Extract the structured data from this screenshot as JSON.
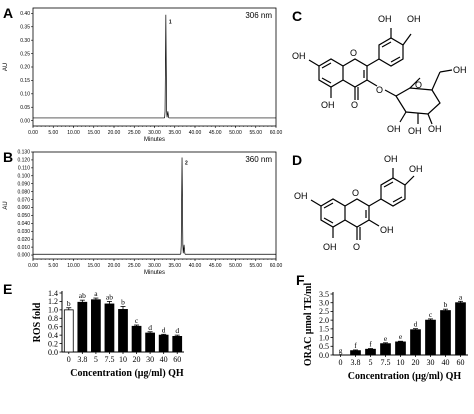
{
  "panel_letters": {
    "a": "A",
    "b": "B",
    "c": "C",
    "d": "D",
    "e": "E",
    "f": "F"
  },
  "chart_data": [
    {
      "id": "A",
      "type": "line",
      "ylabel": "AU",
      "xlabel": "Minutes",
      "annotation": "306 nm",
      "peak_label": "1",
      "x_ticks": [
        "0.00",
        "5.00",
        "10.00",
        "15.00",
        "20.00",
        "25.00",
        "30.00",
        "35.00",
        "40.00",
        "45.00",
        "50.00",
        "55.00",
        "60.00"
      ],
      "y_ticks": [
        "0.00",
        "0.05",
        "0.10",
        "0.15",
        "0.20",
        "0.25",
        "0.30",
        "0.35",
        "0.40"
      ],
      "xlim": [
        0,
        60
      ],
      "ylim": [
        -0.02,
        0.42
      ],
      "baseline": 0.01,
      "peak": {
        "x": 32.8,
        "y": 0.385,
        "width": 0.12
      },
      "minor_peaks": [
        {
          "x": 33.3,
          "y": 0.025
        }
      ]
    },
    {
      "id": "B",
      "type": "line",
      "ylabel": "AU",
      "xlabel": "Minutes",
      "annotation": "360 nm",
      "peak_label": "2",
      "x_ticks": [
        "0.00",
        "5.00",
        "10.00",
        "15.00",
        "20.00",
        "25.00",
        "30.00",
        "35.00",
        "40.00",
        "45.00",
        "50.00",
        "55.00",
        "60.00"
      ],
      "y_ticks": [
        "0.000",
        "0.010",
        "0.020",
        "0.030",
        "0.040",
        "0.050",
        "0.060",
        "0.070",
        "0.080",
        "0.090",
        "0.100",
        "0.110",
        "0.120",
        "0.130"
      ],
      "xlim": [
        0,
        60
      ],
      "ylim": [
        -0.005,
        0.13
      ],
      "baseline": 0.001,
      "peak": {
        "x": 36.8,
        "y": 0.122,
        "width": 0.13
      },
      "minor_peaks": [
        {
          "x": 37.3,
          "y": 0.012
        }
      ]
    },
    {
      "id": "E",
      "type": "bar",
      "ylabel": "ROS fold",
      "xlabel": "Concentration (μg/ml) QH",
      "categories": [
        "0",
        "3.8",
        "5",
        "7.5",
        "10",
        "20",
        "30",
        "40",
        "60"
      ],
      "values": [
        1.0,
        1.18,
        1.24,
        1.14,
        1.01,
        0.61,
        0.45,
        0.4,
        0.37
      ],
      "errors": [
        0.05,
        0.05,
        0.04,
        0.06,
        0.07,
        0.03,
        0.03,
        0.02,
        0.03
      ],
      "significance": [
        "b",
        "ab",
        "a",
        "ab",
        "b",
        "c",
        "d",
        "d",
        "d"
      ],
      "colors": [
        "#ffffff",
        "#000000",
        "#000000",
        "#000000",
        "#000000",
        "#000000",
        "#000000",
        "#000000",
        "#000000"
      ],
      "y_ticks": [
        "0.0",
        "0.2",
        "0.4",
        "0.6",
        "0.8",
        "1.0",
        "1.2",
        "1.4"
      ],
      "ylim": [
        0,
        1.4
      ]
    },
    {
      "id": "F",
      "type": "bar",
      "ylabel": "ORAC μmol TE/ml",
      "xlabel": "Concentration (μg/ml) QH",
      "categories": [
        "0",
        "3.8",
        "5",
        "7.5",
        "10",
        "20",
        "30",
        "40",
        "60"
      ],
      "values": [
        0.0,
        0.25,
        0.33,
        0.65,
        0.75,
        1.45,
        2.0,
        2.55,
        3.0
      ],
      "errors": [
        0.0,
        0.04,
        0.04,
        0.05,
        0.04,
        0.06,
        0.07,
        0.08,
        0.08
      ],
      "significance": [
        "g",
        "f",
        "f",
        "e",
        "e",
        "d",
        "c",
        "b",
        "a"
      ],
      "y_ticks": [
        "0.0",
        "0.5",
        "1.0",
        "1.5",
        "2.0",
        "2.5",
        "3.0",
        "3.5"
      ],
      "ylim": [
        0,
        3.5
      ]
    }
  ],
  "structure_labels": {
    "oh": "OH",
    "o": "O"
  }
}
